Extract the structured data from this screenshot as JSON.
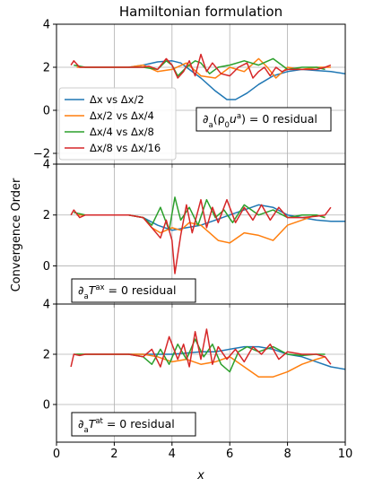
{
  "title": "Hamiltonian formulation",
  "ylabel": "Convergence Order",
  "xlabel": "x",
  "xticks": [
    "0",
    "2",
    "4",
    "6",
    "8",
    "10"
  ],
  "legend": [
    {
      "label": "Δx vs Δx/2",
      "color": "#1f77b4"
    },
    {
      "label": "Δx/2 vs Δx/4",
      "color": "#ff7f0e"
    },
    {
      "label": "Δx/4 vs Δx/8",
      "color": "#2ca02c"
    },
    {
      "label": "Δx/8 vs Δx/16",
      "color": "#d62728"
    }
  ],
  "panels": [
    {
      "yticks": [
        "4",
        "2",
        "0",
        "−2"
      ],
      "annotation": "∂a(ρ0ua) = 0 residual"
    },
    {
      "yticks": [
        "4",
        "2",
        "0"
      ],
      "annotation": "∂aTax = 0 residual"
    },
    {
      "yticks": [
        "4",
        "2",
        "0"
      ],
      "annotation": "∂aTat = 0 residual"
    }
  ],
  "chart_data": [
    {
      "type": "line",
      "title": "Hamiltonian formulation",
      "xlabel": "",
      "ylabel": "",
      "xlim": [
        0,
        10
      ],
      "ylim": [
        -2.5,
        4
      ],
      "grid": true,
      "legend_position": "center-left",
      "annotation": "∂a(ρ0ua) = 0 residual",
      "series": [
        {
          "name": "Δx vs Δx/2",
          "color": "#1f77b4",
          "x": [
            2.5,
            3,
            3.5,
            4,
            4.3,
            4.6,
            5,
            5.5,
            5.9,
            6.2,
            6.6,
            7,
            7.5,
            8,
            8.5,
            9,
            9.5,
            10
          ],
          "y": [
            2.0,
            2.1,
            2.25,
            2.3,
            2.2,
            1.9,
            1.5,
            0.9,
            0.5,
            0.5,
            0.8,
            1.2,
            1.6,
            1.8,
            1.9,
            1.85,
            1.8,
            1.7
          ]
        },
        {
          "name": "Δx/2 vs Δx/4",
          "color": "#ff7f0e",
          "x": [
            0.7,
            1,
            2,
            2.5,
            3,
            3.5,
            4,
            4.5,
            5,
            5.5,
            6,
            6.5,
            7,
            7.3,
            7.6,
            8,
            8.5,
            9,
            9.5
          ],
          "y": [
            2.0,
            2.0,
            2.0,
            2.0,
            2.1,
            1.8,
            1.9,
            2.2,
            1.6,
            1.5,
            2.0,
            1.8,
            2.4,
            2.0,
            1.5,
            2.0,
            1.9,
            2.0,
            2.0
          ]
        },
        {
          "name": "Δx/4 vs Δx/8",
          "color": "#2ca02c",
          "x": [
            0.6,
            1,
            2,
            2.5,
            3,
            3.5,
            3.8,
            4,
            4.2,
            4.5,
            4.8,
            5,
            5.3,
            5.6,
            6,
            6.5,
            7,
            7.5,
            8,
            8.5,
            9,
            9.3
          ],
          "y": [
            2.1,
            2.0,
            2.0,
            2.0,
            2.0,
            1.9,
            2.3,
            2.1,
            1.6,
            2.0,
            2.3,
            2.2,
            1.7,
            2.0,
            2.1,
            2.3,
            2.1,
            2.4,
            1.9,
            2.0,
            2.0,
            1.9
          ]
        },
        {
          "name": "Δx/8 vs Δx/16",
          "color": "#d62728",
          "x": [
            0.5,
            0.6,
            0.8,
            1,
            1.5,
            2,
            2.5,
            3,
            3.2,
            3.5,
            3.8,
            4,
            4.2,
            4.4,
            4.6,
            4.8,
            5,
            5.2,
            5.4,
            5.7,
            6,
            6.3,
            6.6,
            6.8,
            7,
            7.2,
            7.4,
            7.6,
            7.8,
            8,
            8.5,
            9,
            9.3,
            9.5
          ],
          "y": [
            2.1,
            2.3,
            2.0,
            2.0,
            2.0,
            2.0,
            2.0,
            2.0,
            2.05,
            1.9,
            2.4,
            2.1,
            1.5,
            1.8,
            2.3,
            1.6,
            2.6,
            1.8,
            2.2,
            1.7,
            1.6,
            2.0,
            2.2,
            1.5,
            1.8,
            2.0,
            1.6,
            2.0,
            1.8,
            1.9,
            1.9,
            1.9,
            2.0,
            2.1
          ]
        }
      ]
    },
    {
      "type": "line",
      "xlabel": "",
      "ylabel": "Convergence Order",
      "xlim": [
        0,
        10
      ],
      "ylim": [
        -1.5,
        4
      ],
      "grid": true,
      "annotation": "∂aTax = 0 residual",
      "series": [
        {
          "name": "Δx vs Δx/2",
          "color": "#1f77b4",
          "x": [
            2.5,
            3,
            3.5,
            4,
            4.5,
            5,
            5.5,
            6,
            6.5,
            7,
            7.5,
            8,
            8.5,
            9,
            9.5,
            10
          ],
          "y": [
            2.0,
            1.9,
            1.6,
            1.4,
            1.5,
            1.6,
            1.8,
            2.0,
            2.2,
            2.4,
            2.3,
            2.0,
            1.9,
            1.8,
            1.75,
            1.75
          ]
        },
        {
          "name": "Δx/2 vs Δx/4",
          "color": "#ff7f0e",
          "x": [
            0.7,
            1,
            2,
            2.5,
            3,
            3.3,
            3.6,
            4,
            4.3,
            4.6,
            5,
            5.3,
            5.6,
            6,
            6.5,
            7,
            7.5,
            8,
            8.5,
            9,
            9.3
          ],
          "y": [
            2.0,
            2.0,
            2.0,
            2.0,
            1.9,
            1.5,
            1.3,
            1.5,
            1.4,
            1.7,
            1.6,
            1.3,
            1.0,
            0.9,
            1.3,
            1.2,
            1.0,
            1.6,
            1.8,
            2.0,
            1.9
          ]
        },
        {
          "name": "Δx/4 vs Δx/8",
          "color": "#2ca02c",
          "x": [
            0.6,
            1,
            2,
            2.5,
            3,
            3.3,
            3.6,
            3.9,
            4.1,
            4.3,
            4.6,
            4.9,
            5.2,
            5.5,
            5.8,
            6.1,
            6.5,
            7,
            7.5,
            8,
            8.5,
            9,
            9.3
          ],
          "y": [
            2.1,
            2.0,
            2.0,
            2.0,
            1.9,
            1.6,
            2.3,
            1.4,
            2.7,
            1.8,
            2.3,
            1.6,
            2.6,
            1.9,
            2.2,
            1.7,
            2.4,
            2.0,
            2.2,
            1.9,
            2.0,
            2.0,
            1.9
          ]
        },
        {
          "name": "Δx/8 vs Δx/16",
          "color": "#d62728",
          "x": [
            0.5,
            0.6,
            0.8,
            1,
            1.5,
            2,
            2.5,
            3,
            3.3,
            3.6,
            3.8,
            4,
            4.1,
            4.3,
            4.5,
            4.7,
            5,
            5.2,
            5.4,
            5.6,
            5.9,
            6.2,
            6.5,
            6.8,
            7.1,
            7.4,
            7.7,
            8,
            8.5,
            9,
            9.3,
            9.5
          ],
          "y": [
            2.0,
            2.2,
            1.9,
            2.0,
            2.0,
            2.0,
            2.0,
            1.9,
            1.5,
            1.1,
            1.8,
            1.0,
            -0.3,
            1.2,
            2.4,
            1.3,
            2.6,
            1.5,
            2.3,
            1.7,
            2.6,
            1.7,
            2.3,
            1.8,
            2.4,
            1.8,
            2.3,
            1.9,
            1.9,
            1.95,
            2.0,
            2.3
          ]
        }
      ]
    },
    {
      "type": "line",
      "xlabel": "x",
      "ylabel": "",
      "xlim": [
        0,
        10
      ],
      "ylim": [
        -1.5,
        4
      ],
      "grid": true,
      "annotation": "∂aTat = 0 residual",
      "series": [
        {
          "name": "Δx vs Δx/2",
          "color": "#1f77b4",
          "x": [
            2.5,
            3,
            3.5,
            4,
            4.5,
            5,
            5.5,
            6,
            6.5,
            7,
            7.5,
            8,
            8.5,
            9,
            9.5,
            10
          ],
          "y": [
            2.0,
            2.0,
            2.0,
            2.0,
            2.05,
            2.1,
            2.1,
            2.2,
            2.3,
            2.3,
            2.2,
            2.0,
            1.9,
            1.7,
            1.5,
            1.4
          ]
        },
        {
          "name": "Δx/2 vs Δx/4",
          "color": "#ff7f0e",
          "x": [
            0.7,
            1,
            2,
            2.5,
            3,
            3.5,
            4,
            4.5,
            5,
            5.5,
            6,
            6.5,
            7,
            7.5,
            8,
            8.5,
            9,
            9.3
          ],
          "y": [
            2.0,
            2.0,
            2.0,
            2.0,
            2.0,
            1.9,
            1.7,
            1.8,
            1.6,
            1.7,
            1.9,
            1.5,
            1.1,
            1.1,
            1.3,
            1.6,
            1.8,
            1.9
          ]
        },
        {
          "name": "Δx/4 vs Δx/8",
          "color": "#2ca02c",
          "x": [
            0.6,
            1,
            2,
            2.5,
            3,
            3.3,
            3.6,
            3.9,
            4.2,
            4.5,
            4.8,
            5.1,
            5.4,
            5.7,
            6,
            6.3,
            6.6,
            7,
            7.5,
            8,
            8.5,
            9,
            9.3
          ],
          "y": [
            2.0,
            2.0,
            2.0,
            2.0,
            1.9,
            1.6,
            2.2,
            1.6,
            2.4,
            1.8,
            2.6,
            1.9,
            2.4,
            1.6,
            1.3,
            2.1,
            2.3,
            2.1,
            2.3,
            2.0,
            1.95,
            2.0,
            2.0
          ]
        },
        {
          "name": "Δx/8 vs Δx/16",
          "color": "#d62728",
          "x": [
            0.5,
            0.6,
            0.8,
            1,
            1.5,
            2,
            2.5,
            3,
            3.3,
            3.6,
            3.9,
            4.2,
            4.4,
            4.6,
            4.8,
            5,
            5.2,
            5.4,
            5.6,
            5.9,
            6.2,
            6.5,
            6.8,
            7.1,
            7.4,
            7.7,
            8,
            8.5,
            9,
            9.3,
            9.5
          ],
          "y": [
            1.5,
            2.0,
            1.95,
            2.0,
            2.0,
            2.0,
            2.0,
            1.9,
            2.2,
            1.5,
            2.7,
            1.8,
            2.4,
            1.5,
            2.9,
            1.8,
            3.0,
            1.6,
            2.3,
            1.8,
            2.2,
            1.7,
            2.3,
            2.0,
            2.4,
            1.8,
            2.1,
            2.0,
            2.0,
            1.9,
            1.6
          ]
        }
      ]
    }
  ]
}
